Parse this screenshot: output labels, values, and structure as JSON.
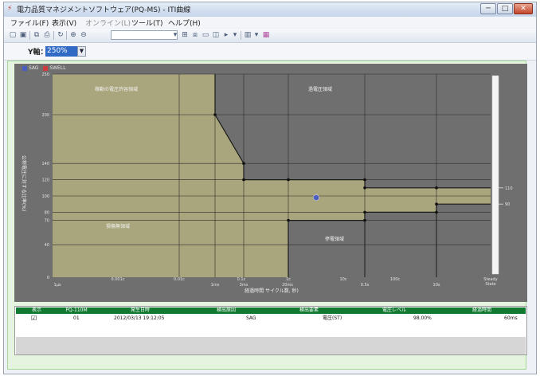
{
  "window": {
    "title": "電力品質マネジメントソフトウェア(PQ-MS) - ITI曲線",
    "min_label": "─",
    "max_label": "□",
    "close_label": "✕"
  },
  "menu": {
    "file": "ファイル(F)",
    "view": "表示(V)",
    "online": "オンライン(L)",
    "tools": "ツール(T)",
    "help": "ヘルプ(H)"
  },
  "toolbar": {
    "icons": [
      "new-icon",
      "save-icon",
      "copy-icon",
      "print-icon",
      "refresh-icon",
      "zoom-in-icon",
      "zoom-out-icon",
      "combo",
      "tile-icon",
      "cascade-icon",
      "window-icon",
      "split-icon",
      "forward-icon",
      "dropdown-icon",
      "chart-icon",
      "dropdown-icon",
      "palette-icon"
    ]
  },
  "yaxis_control": {
    "label": "Y軸：",
    "value": "250%"
  },
  "legend": {
    "sag": "SAG",
    "swell": "SWELL",
    "sag_color": "#4a5fc1",
    "swell_color": "#d23b3b"
  },
  "chart_data": {
    "type": "scatter",
    "title": "",
    "ylabel": "公称電圧に対する比率(%)",
    "xlabel": "経過時間 サイクル数, 秒)",
    "ylim": [
      0,
      250
    ],
    "y_ticks": [
      "250",
      "200",
      "140",
      "120",
      "100",
      "80",
      "70",
      "40",
      "0"
    ],
    "x_ticks": [
      "1μs",
      "0.001c",
      "0.01c",
      "1ms",
      "0.1c",
      "3ms",
      "20ms",
      "1c",
      "10c",
      "0.5s",
      "100c",
      "10s",
      "Steady State"
    ],
    "right_ticks": [
      "110",
      "90"
    ],
    "regions": {
      "prohibited": "稼動の電圧許容領域",
      "overvoltage": "過電圧領域",
      "no_damage": "損傷無領域",
      "no_interrupt": "停電領域"
    },
    "series": [
      {
        "name": "SAG",
        "points": [
          {
            "x": "1c",
            "y": 98
          }
        ]
      }
    ],
    "color_fill": "#a9a57c",
    "color_background": "#6f6f6f"
  },
  "table": {
    "headers": [
      "表示",
      "PQ-110M",
      "発生日時",
      "検出原因",
      "検出要素",
      "電圧レベル",
      "経過時間"
    ],
    "rows": [
      {
        "checked": "☑",
        "id": "01",
        "datetime": "2012/03/13 19:12:05",
        "cause": "SAG",
        "element": "電圧(ST)",
        "level": "98.00%",
        "duration": "60ms"
      }
    ]
  }
}
